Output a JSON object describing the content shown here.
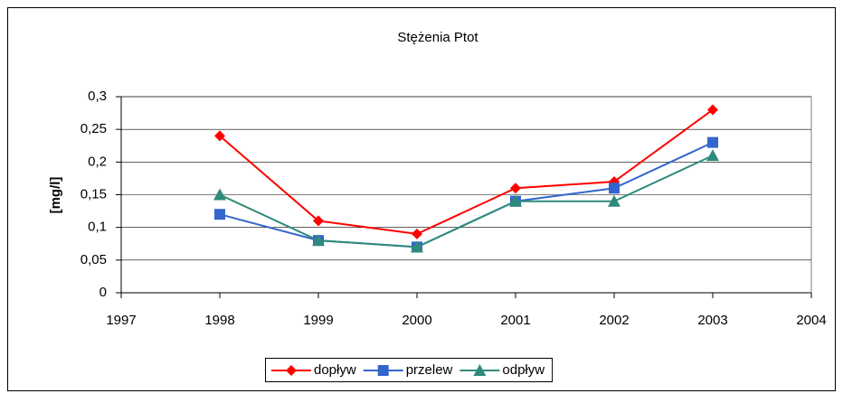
{
  "chart_data": {
    "type": "line",
    "title": "Stężenia Ptot",
    "y_label": "[mg/l]",
    "x": [
      1998,
      1999,
      2000,
      2001,
      2002,
      2003
    ],
    "xlim": [
      1997,
      2004
    ],
    "xticks": [
      1997,
      1998,
      1999,
      2000,
      2001,
      2002,
      2003,
      2004
    ],
    "ylim": [
      0,
      0.3
    ],
    "yticks": [
      0,
      {
        "value": 0.05,
        "label": "0,05"
      },
      {
        "value": 0.1,
        "label": "0,1"
      },
      {
        "value": 0.15,
        "label": "0,15"
      },
      {
        "value": 0.2,
        "label": "0,2"
      },
      {
        "value": 0.25,
        "label": "0,25"
      },
      {
        "value": 0.3,
        "label": "0,3"
      }
    ],
    "grid": true,
    "legend": "bottom",
    "series": [
      {
        "name": "dopływ",
        "color": "#ff0000",
        "marker": "diamond",
        "values": [
          0.24,
          0.11,
          0.09,
          0.16,
          0.17,
          0.28
        ]
      },
      {
        "name": "przelew",
        "color": "#3366cc",
        "marker": "square",
        "values": [
          0.12,
          0.08,
          0.07,
          0.14,
          0.16,
          0.23
        ]
      },
      {
        "name": "odpływ",
        "color": "#2e8b7a",
        "marker": "triangle",
        "values": [
          0.15,
          0.08,
          0.07,
          0.14,
          0.14,
          0.21
        ]
      }
    ]
  }
}
